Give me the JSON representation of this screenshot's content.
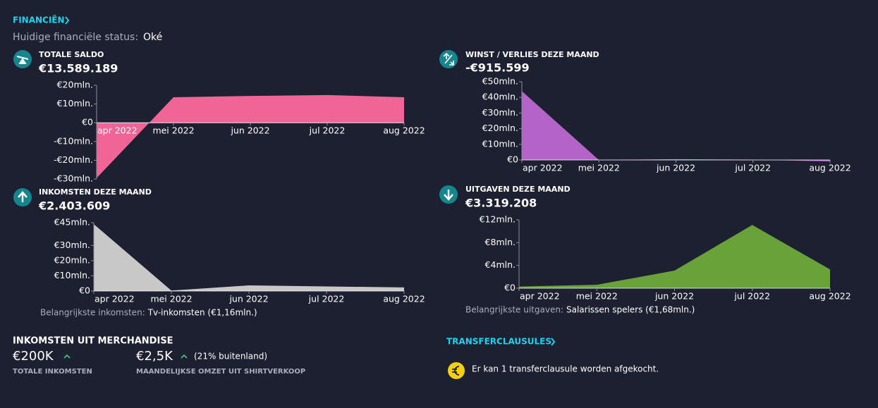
{
  "header": {
    "title": "FINANCIËN",
    "status_label": "Huidige financiële status:",
    "status_value": "Oké"
  },
  "chart_data": [
    {
      "type": "area",
      "title": "TOTALE SALDO",
      "subtitle": "€13.589.189",
      "categories": [
        "apr 2022",
        "mei 2022",
        "jun 2022",
        "jul 2022",
        "aug 2022"
      ],
      "values": [
        -29.5,
        13.6,
        14.3,
        14.8,
        13.6
      ],
      "color": "#f06496",
      "ylim": [
        -30,
        20
      ],
      "yticks": [
        {
          "value": 20,
          "label": "€20mln."
        },
        {
          "value": 10,
          "label": "€10mln."
        },
        {
          "value": 0,
          "label": "€0"
        },
        {
          "value": -10,
          "label": "-€10mln."
        },
        {
          "value": -20,
          "label": "-€20mln."
        },
        {
          "value": -30,
          "label": "-€30mln."
        }
      ]
    },
    {
      "type": "area",
      "title": "WINST / VERLIES DEZE MAAND",
      "subtitle": "-€915.599",
      "subtitle_color": "#f25c5c",
      "categories": [
        "apr 2022",
        "mei 2022",
        "jun 2022",
        "jul 2022",
        "aug 2022"
      ],
      "values": [
        44,
        0,
        0.5,
        0.2,
        -0.9
      ],
      "color": "#b464c8",
      "ylim": [
        0,
        50
      ],
      "yticks": [
        {
          "value": 50,
          "label": "€50mln."
        },
        {
          "value": 40,
          "label": "€40mln."
        },
        {
          "value": 30,
          "label": "€30mln."
        },
        {
          "value": 20,
          "label": "€20mln."
        },
        {
          "value": 10,
          "label": "€10mln."
        },
        {
          "value": 0,
          "label": "€0"
        }
      ]
    },
    {
      "type": "area",
      "title": "INKOMSTEN DEZE MAAND",
      "subtitle": "€2.403.609",
      "categories": [
        "apr 2022",
        "mei 2022",
        "jun 2022",
        "jul 2022",
        "aug 2022"
      ],
      "values": [
        44,
        0.3,
        3.7,
        3,
        2.4
      ],
      "color": "#c8c8c8",
      "ylim": [
        0,
        45
      ],
      "yticks": [
        {
          "value": 45,
          "label": "€45mln."
        },
        {
          "value": 30,
          "label": "€30mln."
        },
        {
          "value": 20,
          "label": "€20mln."
        },
        {
          "value": 10,
          "label": "€10mln."
        },
        {
          "value": 0,
          "label": "€0"
        }
      ],
      "note_label": "Belangrijkste inkomsten:",
      "note": "Tv-inkomsten (€1,16mln.)"
    },
    {
      "type": "area",
      "title": "UITGAVEN DEZE MAAND",
      "subtitle": "€3.319.208",
      "categories": [
        "apr 2022",
        "mei 2022",
        "jun 2022",
        "jul 2022",
        "aug 2022"
      ],
      "values": [
        0.3,
        0.6,
        3.1,
        11.1,
        3.3
      ],
      "color": "#6aa23a",
      "ylim": [
        0,
        12
      ],
      "yticks": [
        {
          "value": 12,
          "label": "€12mln."
        },
        {
          "value": 8,
          "label": "€8mln."
        },
        {
          "value": 4,
          "label": "€4mln."
        },
        {
          "value": 0,
          "label": "€0"
        }
      ],
      "note_label": "Belangrijkste uitgaven:",
      "note": "Salarissen spelers (€1,68mln.)"
    }
  ],
  "merchandise": {
    "title": "INKOMSTEN UIT MERCHANDISE",
    "total": "€200K",
    "total_label": "TOTALE INKOMSTEN",
    "monthly": "€2,5K",
    "monthly_note": "(21% buitenland)",
    "monthly_label": "MAANDELIJKSE OMZET UIT SHIRTVERKOOP"
  },
  "transfer": {
    "title": "TRANSFERCLAUSULES",
    "text": "Er kan 1 transferclausule worden afgekocht."
  }
}
